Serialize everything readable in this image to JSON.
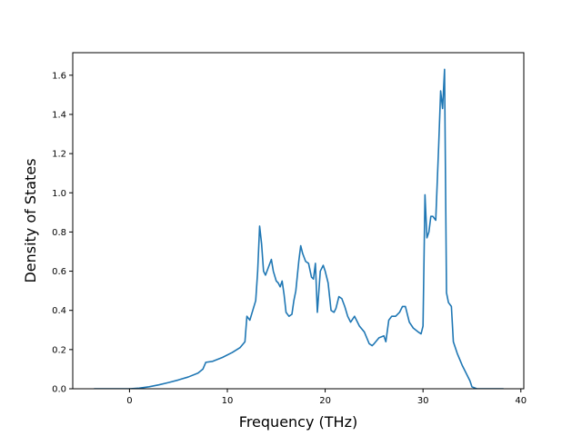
{
  "chart_data": {
    "type": "line",
    "title": "",
    "xlabel": "Frequency (THz)",
    "ylabel": "Density of States",
    "xlim": [
      -5.8,
      40.3
    ],
    "ylim": [
      0.0,
      1.715
    ],
    "xticks": [
      0,
      10,
      20,
      30,
      40
    ],
    "yticks": [
      0.0,
      0.2,
      0.4,
      0.6,
      0.8,
      1.0,
      1.2,
      1.4,
      1.6
    ],
    "xtick_labels": [
      "0",
      "10",
      "20",
      "30",
      "40"
    ],
    "ytick_labels": [
      "0.0",
      "0.2",
      "0.4",
      "0.6",
      "0.8",
      "1.0",
      "1.2",
      "1.4",
      "1.6"
    ],
    "grid": false,
    "legend": "none",
    "series": [
      {
        "color": "#1f77b4",
        "x": [
          -3.6,
          -2.0,
          0.0,
          1.0,
          2.0,
          3.0,
          4.0,
          5.0,
          6.0,
          7.0,
          7.5,
          7.8,
          8.5,
          9.5,
          10.5,
          11.3,
          11.8,
          12.0,
          12.3,
          12.6,
          12.9,
          13.1,
          13.3,
          13.5,
          13.7,
          13.9,
          14.2,
          14.5,
          14.7,
          15.0,
          15.2,
          15.4,
          15.6,
          15.8,
          16.0,
          16.3,
          16.6,
          16.8,
          17.0,
          17.3,
          17.5,
          17.7,
          18.0,
          18.3,
          18.6,
          18.8,
          19.0,
          19.2,
          19.5,
          19.8,
          20.0,
          20.3,
          20.6,
          20.9,
          21.1,
          21.4,
          21.7,
          22.0,
          22.3,
          22.6,
          23.0,
          23.2,
          23.5,
          24.0,
          24.5,
          24.8,
          25.0,
          25.5,
          26.0,
          26.2,
          26.5,
          26.8,
          27.2,
          27.6,
          27.9,
          28.2,
          28.6,
          29.0,
          29.5,
          29.8,
          30.0,
          30.2,
          30.4,
          30.6,
          30.8,
          31.0,
          31.3,
          31.6,
          31.8,
          32.0,
          32.2,
          32.4,
          32.6,
          32.9,
          33.1,
          33.5,
          34.0,
          34.5,
          34.8,
          35.0,
          35.5,
          36.5,
          37.5,
          38.2
        ],
        "y": [
          0.0,
          0.0,
          0.0,
          0.003,
          0.01,
          0.02,
          0.032,
          0.045,
          0.06,
          0.08,
          0.1,
          0.135,
          0.14,
          0.16,
          0.185,
          0.21,
          0.24,
          0.37,
          0.35,
          0.4,
          0.45,
          0.6,
          0.83,
          0.74,
          0.6,
          0.58,
          0.62,
          0.66,
          0.6,
          0.55,
          0.54,
          0.52,
          0.55,
          0.48,
          0.39,
          0.37,
          0.38,
          0.45,
          0.5,
          0.65,
          0.73,
          0.69,
          0.65,
          0.64,
          0.57,
          0.56,
          0.64,
          0.39,
          0.6,
          0.63,
          0.6,
          0.54,
          0.4,
          0.39,
          0.41,
          0.47,
          0.46,
          0.42,
          0.37,
          0.34,
          0.37,
          0.35,
          0.32,
          0.29,
          0.23,
          0.22,
          0.23,
          0.26,
          0.27,
          0.24,
          0.35,
          0.37,
          0.37,
          0.39,
          0.42,
          0.42,
          0.34,
          0.31,
          0.29,
          0.28,
          0.32,
          0.99,
          0.77,
          0.8,
          0.88,
          0.88,
          0.86,
          1.24,
          1.52,
          1.43,
          1.63,
          0.49,
          0.44,
          0.42,
          0.24,
          0.18,
          0.12,
          0.07,
          0.04,
          0.01,
          0.0,
          0.0,
          0.0,
          0.0
        ]
      }
    ]
  }
}
